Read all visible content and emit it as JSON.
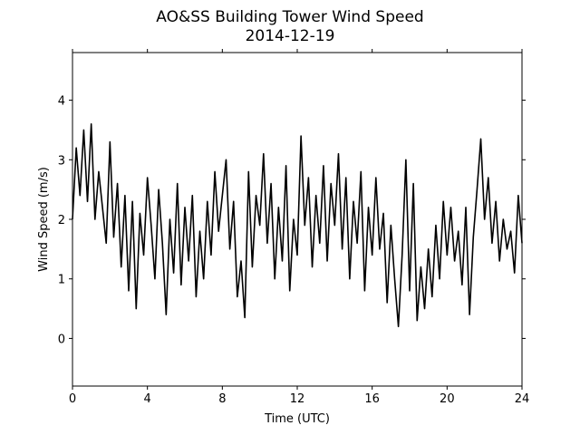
{
  "chart_data": {
    "type": "line",
    "title": "AO&SS Building Tower Wind Speed",
    "subtitle": "2014-12-19",
    "x_label": "Time (UTC)",
    "y_label": "Wind Speed (m/s)",
    "xlim": [
      0,
      24
    ],
    "ylim": [
      -0.8,
      4.8
    ],
    "xticks": [
      0,
      4,
      8,
      12,
      16,
      20,
      24
    ],
    "yticks": [
      0,
      1,
      2,
      3,
      4
    ],
    "grid": false,
    "series": [
      {
        "name": "Wind Speed",
        "color": "#000000",
        "x": [
          0,
          0.2,
          0.4,
          0.6,
          0.8,
          1,
          1.2,
          1.4,
          1.6,
          1.8,
          2,
          2.2,
          2.4,
          2.6,
          2.8,
          3,
          3.2,
          3.4,
          3.6,
          3.8,
          4,
          4.2,
          4.4,
          4.6,
          4.8,
          5,
          5.2,
          5.4,
          5.6,
          5.8,
          6,
          6.2,
          6.4,
          6.6,
          6.8,
          7,
          7.2,
          7.4,
          7.6,
          7.8,
          8,
          8.2,
          8.4,
          8.6,
          8.8,
          9,
          9.2,
          9.4,
          9.6,
          9.8,
          10,
          10.2,
          10.4,
          10.6,
          10.8,
          11,
          11.2,
          11.4,
          11.6,
          11.8,
          12,
          12.2,
          12.4,
          12.6,
          12.8,
          13,
          13.2,
          13.4,
          13.6,
          13.8,
          14,
          14.2,
          14.4,
          14.6,
          14.8,
          15,
          15.2,
          15.4,
          15.6,
          15.8,
          16,
          16.2,
          16.4,
          16.6,
          16.8,
          17,
          17.2,
          17.4,
          17.6,
          17.8,
          18,
          18.2,
          18.4,
          18.6,
          18.8,
          19,
          19.2,
          19.4,
          19.6,
          19.8,
          20,
          20.2,
          20.4,
          20.6,
          20.8,
          21,
          21.2,
          21.4,
          21.6,
          21.8,
          22,
          22.2,
          22.4,
          22.6,
          22.8,
          23,
          23.2,
          23.4,
          23.6,
          23.8,
          24
        ],
        "values": [
          2.0,
          3.2,
          2.4,
          3.5,
          2.3,
          3.6,
          2.0,
          2.8,
          2.2,
          1.6,
          3.3,
          1.7,
          2.6,
          1.2,
          2.4,
          0.8,
          2.3,
          0.5,
          2.1,
          1.4,
          2.7,
          1.9,
          1.0,
          2.5,
          1.6,
          0.4,
          2.0,
          1.1,
          2.6,
          0.9,
          2.2,
          1.3,
          2.4,
          0.7,
          1.8,
          1.0,
          2.3,
          1.4,
          2.8,
          1.8,
          2.4,
          3.0,
          1.5,
          2.3,
          0.7,
          1.3,
          0.35,
          2.8,
          1.2,
          2.4,
          1.9,
          3.1,
          1.6,
          2.6,
          1.0,
          2.2,
          1.3,
          2.9,
          0.8,
          2.0,
          1.4,
          3.4,
          1.9,
          2.7,
          1.2,
          2.4,
          1.6,
          2.9,
          1.3,
          2.6,
          1.9,
          3.1,
          1.5,
          2.7,
          1.0,
          2.3,
          1.6,
          2.8,
          0.8,
          2.2,
          1.4,
          2.7,
          1.5,
          2.1,
          0.6,
          1.9,
          1.0,
          0.2,
          1.4,
          3.0,
          0.8,
          2.6,
          0.3,
          1.2,
          0.5,
          1.5,
          0.7,
          1.9,
          1.0,
          2.3,
          1.4,
          2.2,
          1.3,
          1.8,
          0.9,
          2.2,
          0.4,
          1.7,
          2.5,
          3.35,
          2.0,
          2.7,
          1.6,
          2.3,
          1.3,
          2.0,
          1.5,
          1.8,
          1.1,
          2.4,
          1.6
        ]
      }
    ]
  }
}
